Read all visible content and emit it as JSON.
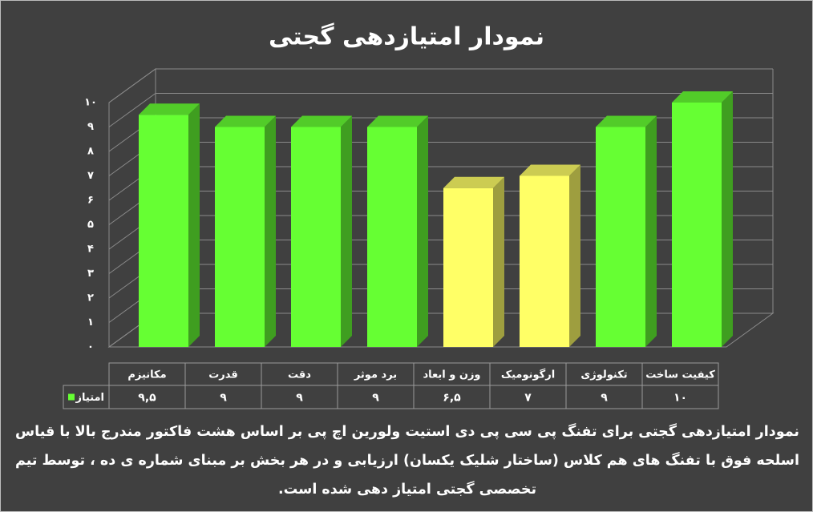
{
  "chart_data": {
    "type": "bar3d",
    "title": "نمودار امتیازدهی گجتی",
    "categories": [
      "مکانیزم",
      "قدرت",
      "دقت",
      "برد موثر",
      "وزن و ابعاد",
      "ارگونومیک",
      "تکنولوژی",
      "کیفیت ساخت"
    ],
    "series": [
      {
        "name": "امتیاز",
        "color": "#66ff33",
        "point_colors": [
          "#66ff33",
          "#66ff33",
          "#66ff33",
          "#66ff33",
          "#ffff66",
          "#ffff66",
          "#66ff33",
          "#66ff33"
        ],
        "values": [
          9.5,
          9,
          9,
          9,
          6.5,
          7,
          9,
          10
        ],
        "value_labels": [
          "۹,۵",
          "۹",
          "۹",
          "۹",
          "۶,۵",
          "۷",
          "۹",
          "۱۰"
        ]
      }
    ],
    "ylim": [
      0,
      10
    ],
    "yticks": [
      {
        "value": 0,
        "label": "۰"
      },
      {
        "value": 1,
        "label": "۱"
      },
      {
        "value": 2,
        "label": "۲"
      },
      {
        "value": 3,
        "label": "۳"
      },
      {
        "value": 4,
        "label": "۴"
      },
      {
        "value": 5,
        "label": "۵"
      },
      {
        "value": 6,
        "label": "۶"
      },
      {
        "value": 7,
        "label": "۷"
      },
      {
        "value": 8,
        "label": "۸"
      },
      {
        "value": 9,
        "label": "۹"
      },
      {
        "value": 10,
        "label": "۱۰"
      }
    ],
    "grid": true,
    "data_table": true,
    "caption": "نمودار امتیازدهی گجتی برای تفنگ پی سی پی دی استیت ولورین اچ پی بر اساس هشت فاکتور مندرج بالا با قیاس اسلحه فوق با تفنگ های هم کلاس (ساختار شلیک یکسان) ارزیابی و در هر بخش بر مبنای شماره ی ده ، توسط تیم تخصصی گجتی امتیاز دهی شده است."
  }
}
